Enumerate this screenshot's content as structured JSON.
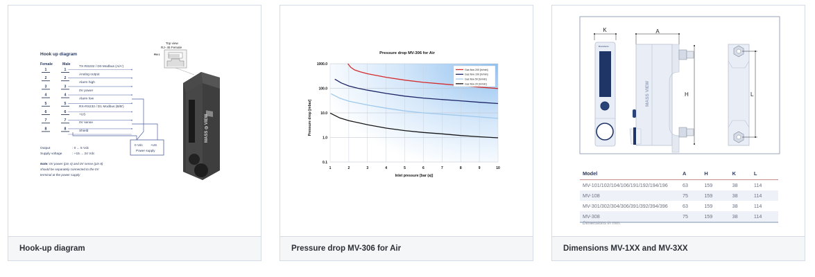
{
  "cards": [
    {
      "caption": "Hook-up diagram",
      "diagram": {
        "title": "Hook up diagram",
        "female_label": "Female",
        "male_label": "Male",
        "pins": [
          "1",
          "2",
          "3",
          "4",
          "5",
          "6",
          "7",
          "8"
        ],
        "signals": [
          "TX-RS232 / D0 Modbus (A/A')",
          "Analog output",
          "Alarm high",
          "0V power",
          "Alarm low",
          "RX-RS232 / D1 Modbus (B/B')",
          "+US",
          "0V sense",
          "Shield"
        ],
        "power_supply": {
          "v0": "0 Vdc",
          "vus": "+US",
          "label": "Power supply"
        },
        "specs": [
          {
            "label": "Output",
            "value": ": 0 ... 5 Vdc"
          },
          {
            "label": "Supply voltage",
            "value": ": +15 ... 24 Vdc"
          }
        ],
        "note_bold": "Note:",
        "note_lines": [
          " 0V power (pin 4) and 0V sense (pin 8)",
          "should be separately connected to the 0V",
          "terminal at the power supply"
        ],
        "top_view": "Top view",
        "rj45": "RJ- 45 Female",
        "pin1": "PIN 1",
        "device_logo": "MASS VIEW"
      }
    },
    {
      "caption": "Pressure drop MV-306 for Air"
    },
    {
      "caption": "Dimensions MV-1XX and MV-3XX",
      "drawing": {
        "labels": [
          "K",
          "A",
          "H",
          "L"
        ],
        "device_logo": "MASS VIEW",
        "brand": "Bronkhorst"
      },
      "table": {
        "headers": [
          "Model",
          "A",
          "H",
          "K",
          "L"
        ],
        "rows": [
          [
            "MV-101/102/104/106/191/192/194/196",
            "63",
            "159",
            "38",
            "114"
          ],
          [
            "MV-108",
            "75",
            "159",
            "38",
            "114"
          ],
          [
            "MV-301/302/304/306/391/392/394/396",
            "63",
            "159",
            "38",
            "114"
          ],
          [
            "MV-308",
            "75",
            "159",
            "38",
            "114"
          ]
        ],
        "note": "Dimensions in mm."
      }
    }
  ],
  "chart_data": {
    "type": "line",
    "title": "Pressure drop MV-306 for Air",
    "xlabel": "Inlet pressure [bar (a)]",
    "ylabel": "Pressure drop [mbar]",
    "xlim": [
      1,
      10
    ],
    "ylim": [
      0.1,
      1000
    ],
    "yscale": "log",
    "x_ticks": [
      "1",
      "2",
      "3",
      "4",
      "5",
      "6",
      "7",
      "8",
      "9",
      "10"
    ],
    "y_ticks": [
      "1000.0",
      "100.0",
      "10.0",
      "1.0",
      "0.1"
    ],
    "y_tick_values": [
      1000,
      100,
      10,
      1,
      0.1
    ],
    "grid": true,
    "legend_position": "top-right",
    "series": [
      {
        "name": "Gas flow 200 [ln/min]",
        "color": "#d42a2a",
        "x": [
          1.95,
          2.1,
          2.3,
          2.6,
          3,
          4,
          5,
          6,
          7,
          8,
          9,
          10
        ],
        "y": [
          1000,
          720,
          560,
          470,
          390,
          280,
          215,
          175,
          150,
          130,
          112,
          98
        ]
      },
      {
        "name": "Gas flow 100 [ln/min]",
        "color": "#1c2466",
        "x": [
          1.25,
          1.6,
          2,
          2.5,
          3,
          4,
          5,
          6,
          7,
          8,
          9,
          10
        ],
        "y": [
          235,
          165,
          125,
          100,
          84,
          62,
          48,
          40,
          35,
          31,
          27,
          24
        ]
      },
      {
        "name": "Gas flow 50 [ln/min]",
        "color": "#9ec8ec",
        "x": [
          1.05,
          1.5,
          2,
          2.5,
          3,
          4,
          5,
          6,
          7,
          8,
          9,
          10
        ],
        "y": [
          60,
          40,
          30,
          25,
          21,
          15.5,
          12,
          10,
          8.8,
          7.8,
          6.8,
          6
        ]
      },
      {
        "name": "Gas flow 20 [ln/min]",
        "color": "#151515",
        "x": [
          1,
          1.5,
          2,
          2.5,
          3,
          4,
          5,
          6,
          7,
          8,
          9,
          10
        ],
        "y": [
          9.8,
          6.3,
          4.8,
          4,
          3.3,
          2.4,
          1.9,
          1.6,
          1.4,
          1.2,
          1.07,
          0.97
        ]
      }
    ]
  },
  "colors": {
    "card_border": "#d5dbe4",
    "caption_bg": "#f5f6f8",
    "navy": "#1f3566",
    "diagram_blue": "#4a5ea0"
  }
}
